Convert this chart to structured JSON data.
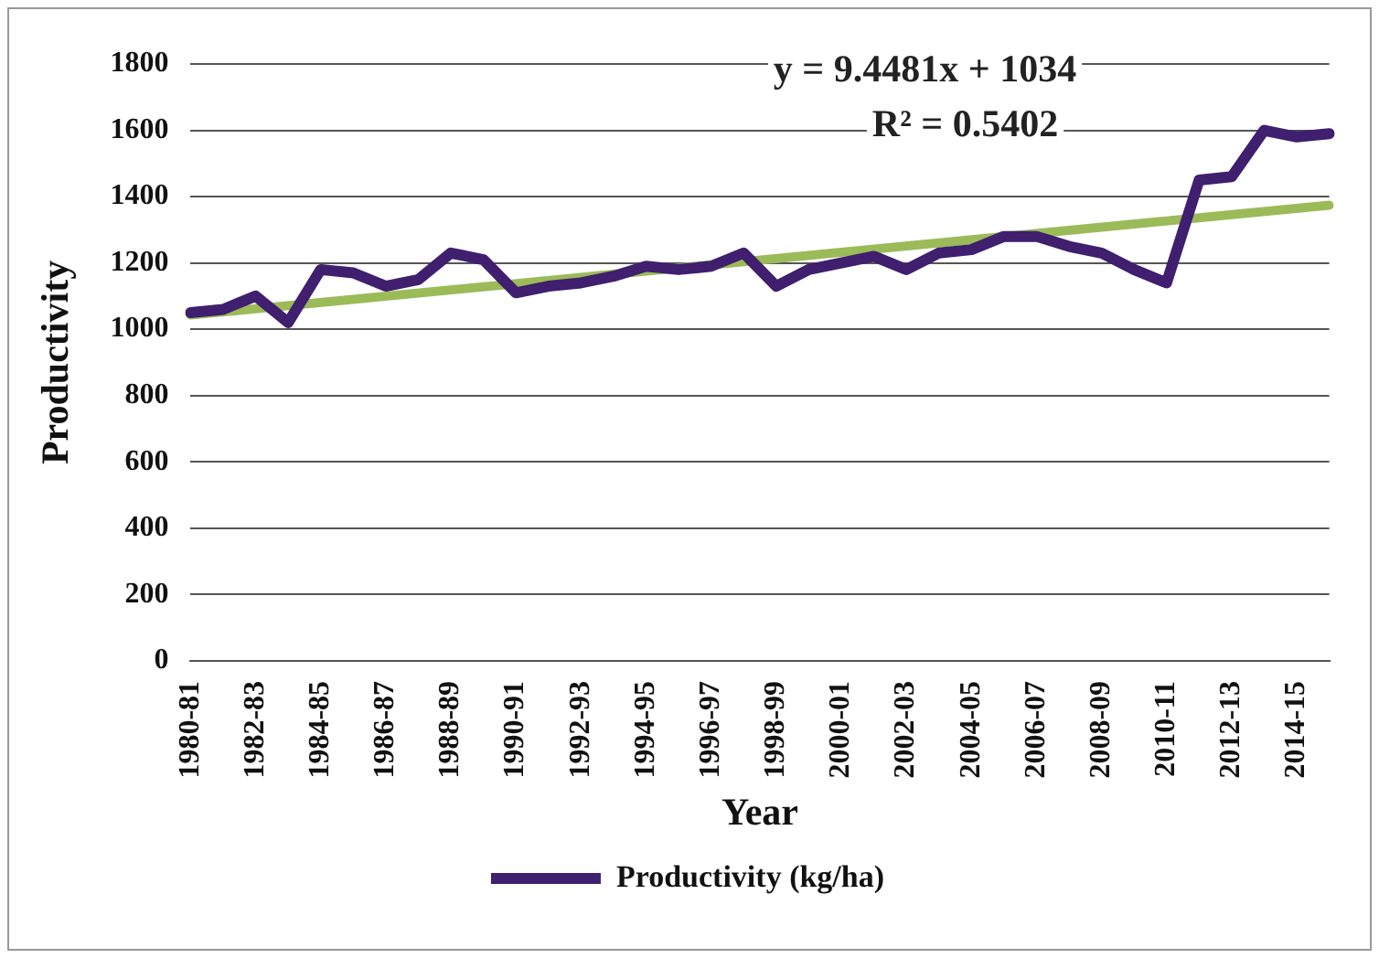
{
  "chart_data": {
    "type": "line",
    "xlabel": "Year",
    "ylabel": "Productivity",
    "categories": [
      "1980-81",
      null,
      "1982-83",
      null,
      "1984-85",
      null,
      "1986-87",
      null,
      "1988-89",
      null,
      "1990-91",
      null,
      "1992-93",
      null,
      "1994-95",
      null,
      "1996-97",
      null,
      "1998-99",
      null,
      "2000-01",
      null,
      "2002-03",
      null,
      "2004-05",
      null,
      "2006-07",
      null,
      "2008-09",
      null,
      "2010-11",
      null,
      "2012-13",
      null,
      "2014-15",
      null
    ],
    "series": [
      {
        "name": "Productivity (kg/ha)",
        "color": "#3f1f6e",
        "values": [
          1050,
          1060,
          1100,
          1020,
          1180,
          1170,
          1130,
          1150,
          1230,
          1210,
          1110,
          1130,
          1140,
          1160,
          1190,
          1180,
          1190,
          1230,
          1130,
          1180,
          1200,
          1220,
          1180,
          1230,
          1240,
          1280,
          1280,
          1250,
          1230,
          1180,
          1140,
          1450,
          1460,
          1600,
          1580,
          1590
        ]
      },
      {
        "color": "#9bbb59",
        "values": [
          1043,
          null,
          null,
          null,
          null,
          null,
          null,
          null,
          null,
          null,
          null,
          null,
          null,
          null,
          null,
          null,
          null,
          null,
          null,
          null,
          null,
          null,
          null,
          null,
          null,
          null,
          null,
          null,
          null,
          null,
          null,
          null,
          null,
          null,
          null,
          1374
        ]
      }
    ],
    "ylim": [
      0,
      1800
    ],
    "yticks": [
      0,
      200,
      400,
      600,
      800,
      1000,
      1200,
      1400,
      1600,
      1800
    ],
    "grid": "y",
    "legend": "bottom",
    "marker": "none",
    "line_style": "solid",
    "annotations": [
      "y = 9.4481x + 1034",
      "R² = 0.5402"
    ]
  }
}
